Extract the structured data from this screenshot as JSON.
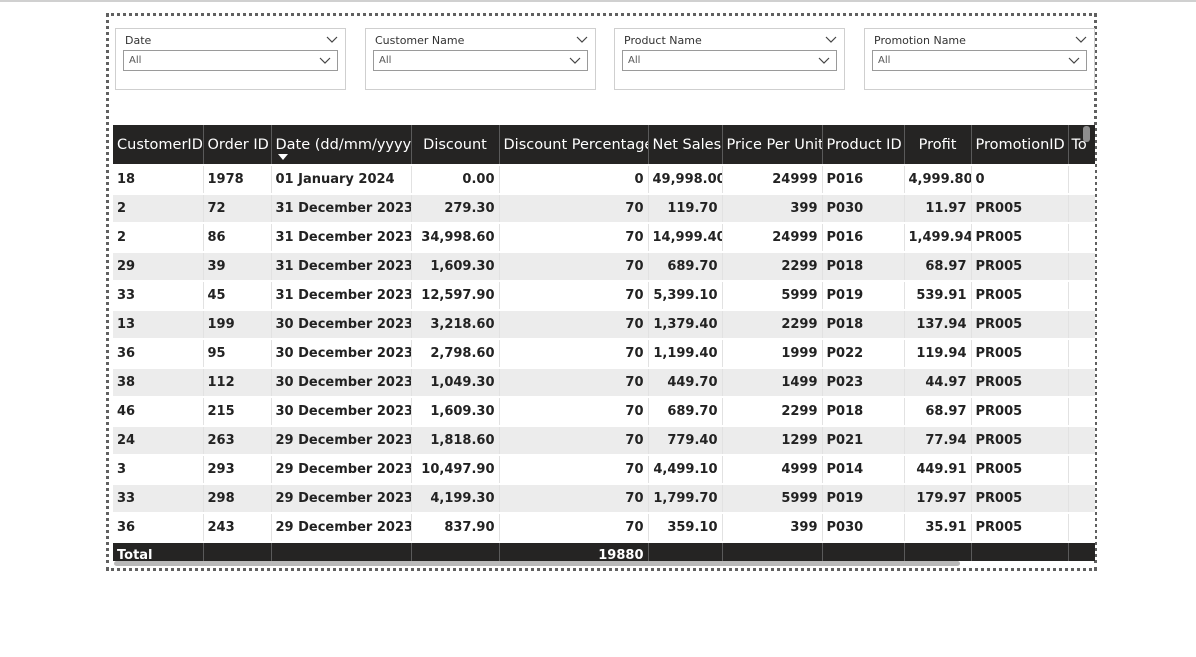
{
  "slicers": [
    {
      "title": "Date",
      "value": "All"
    },
    {
      "title": "Customer Name",
      "value": "All"
    },
    {
      "title": "Product Name",
      "value": "All"
    },
    {
      "title": "Promotion Name",
      "value": "All"
    }
  ],
  "table": {
    "columns": [
      "CustomerID",
      "Order ID",
      "Date (dd/mm/yyyy)",
      "Discount",
      "Discount Percentage",
      "Net Sales",
      "Price Per Unit",
      "Product ID",
      "Profit",
      "PromotionID",
      "To"
    ],
    "rows": [
      [
        "18",
        "1978",
        "01 January 2024",
        "0.00",
        "0",
        "49,998.00",
        "24999",
        "P016",
        "4,999.80",
        "0",
        ""
      ],
      [
        "2",
        "72",
        "31 December 2023",
        "279.30",
        "70",
        "119.70",
        "399",
        "P030",
        "11.97",
        "PR005",
        ""
      ],
      [
        "2",
        "86",
        "31 December 2023",
        "34,998.60",
        "70",
        "14,999.40",
        "24999",
        "P016",
        "1,499.94",
        "PR005",
        ""
      ],
      [
        "29",
        "39",
        "31 December 2023",
        "1,609.30",
        "70",
        "689.70",
        "2299",
        "P018",
        "68.97",
        "PR005",
        ""
      ],
      [
        "33",
        "45",
        "31 December 2023",
        "12,597.90",
        "70",
        "5,399.10",
        "5999",
        "P019",
        "539.91",
        "PR005",
        ""
      ],
      [
        "13",
        "199",
        "30 December 2023",
        "3,218.60",
        "70",
        "1,379.40",
        "2299",
        "P018",
        "137.94",
        "PR005",
        ""
      ],
      [
        "36",
        "95",
        "30 December 2023",
        "2,798.60",
        "70",
        "1,199.40",
        "1999",
        "P022",
        "119.94",
        "PR005",
        ""
      ],
      [
        "38",
        "112",
        "30 December 2023",
        "1,049.30",
        "70",
        "449.70",
        "1499",
        "P023",
        "44.97",
        "PR005",
        ""
      ],
      [
        "46",
        "215",
        "30 December 2023",
        "1,609.30",
        "70",
        "689.70",
        "2299",
        "P018",
        "68.97",
        "PR005",
        ""
      ],
      [
        "24",
        "263",
        "29 December 2023",
        "1,818.60",
        "70",
        "779.40",
        "1299",
        "P021",
        "77.94",
        "PR005",
        ""
      ],
      [
        "3",
        "293",
        "29 December 2023",
        "10,497.90",
        "70",
        "4,499.10",
        "4999",
        "P014",
        "449.91",
        "PR005",
        ""
      ],
      [
        "33",
        "298",
        "29 December 2023",
        "4,199.30",
        "70",
        "1,799.70",
        "5999",
        "P019",
        "179.97",
        "PR005",
        ""
      ],
      [
        "36",
        "243",
        "29 December 2023",
        "837.90",
        "70",
        "359.10",
        "399",
        "P030",
        "35.91",
        "PR005",
        ""
      ]
    ],
    "total": {
      "label": "Total",
      "discount_percentage": "19880"
    }
  },
  "icons": {
    "dropdown": "chevron-down-icon",
    "sort": "sort-descending-icon"
  }
}
